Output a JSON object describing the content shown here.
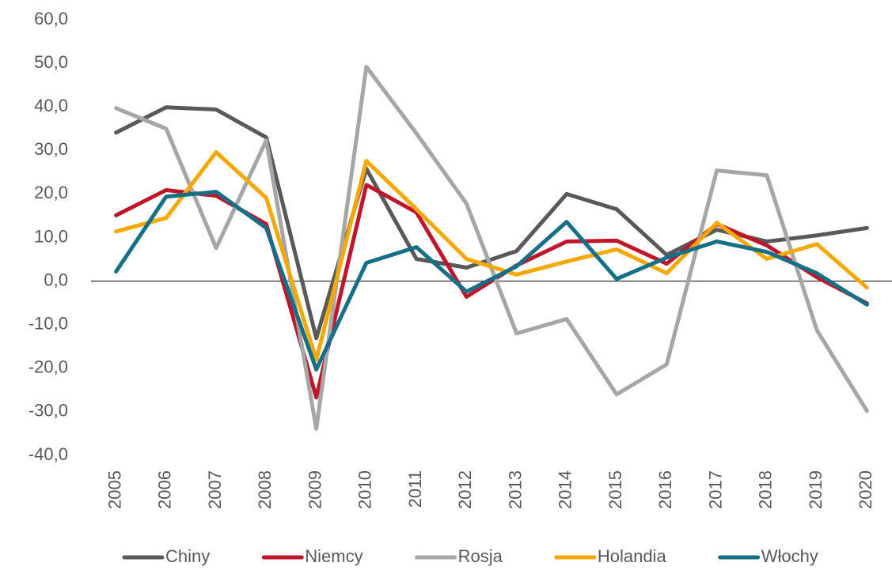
{
  "chart_data": {
    "type": "line",
    "categories": [
      "2005",
      "2006",
      "2007",
      "2008",
      "2009",
      "2010",
      "2011",
      "2012",
      "2013",
      "2014",
      "2015",
      "2016",
      "2017",
      "2018",
      "2019",
      "2020"
    ],
    "series": [
      {
        "name": "Chiny",
        "color": "#595959",
        "values": [
          34.1,
          39.9,
          39.4,
          33.0,
          -13.1,
          25.8,
          5.1,
          3.1,
          6.9,
          20.0,
          16.5,
          6.0,
          11.8,
          9.1,
          10.5,
          12.2
        ]
      },
      {
        "name": "Niemcy",
        "color": "#c0162c",
        "values": [
          15.1,
          20.9,
          19.6,
          13.1,
          -26.7,
          22.1,
          15.8,
          -3.6,
          3.6,
          9.1,
          9.3,
          4.0,
          13.1,
          8.2,
          0.9,
          -5.1
        ]
      },
      {
        "name": "Rosja",
        "color": "#a6a6a6",
        "values": [
          39.7,
          35.0,
          7.6,
          32.3,
          -33.9,
          49.2,
          33.9,
          17.8,
          -12.0,
          -8.7,
          -26.0,
          -19.1,
          25.4,
          24.3,
          -11.3,
          -29.8
        ]
      },
      {
        "name": "Holandia",
        "color": "#f5a800",
        "values": [
          11.4,
          14.5,
          29.6,
          19.1,
          -18.1,
          27.6,
          16.5,
          5.1,
          1.5,
          4.5,
          7.3,
          1.8,
          13.4,
          5.1,
          8.5,
          -1.5
        ]
      },
      {
        "name": "Włochy",
        "color": "#156f87",
        "values": [
          2.2,
          19.4,
          20.5,
          12.2,
          -20.3,
          4.2,
          7.8,
          -2.4,
          3.4,
          13.6,
          0.5,
          5.4,
          9.1,
          6.7,
          1.8,
          -5.4
        ]
      }
    ],
    "ylim": [
      -40,
      60
    ],
    "yticks": [
      {
        "value": -40,
        "label": "-40,0"
      },
      {
        "value": -30,
        "label": "-30,0"
      },
      {
        "value": -20,
        "label": "-20,0"
      },
      {
        "value": -10,
        "label": "-10,0"
      },
      {
        "value": 0,
        "label": "0,0"
      },
      {
        "value": 10,
        "label": "10,0"
      },
      {
        "value": 20,
        "label": "20,0"
      },
      {
        "value": 30,
        "label": "30,0"
      },
      {
        "value": 40,
        "label": "40,0"
      },
      {
        "value": 50,
        "label": "50,0"
      },
      {
        "value": 60,
        "label": "60,0"
      }
    ],
    "grid": false,
    "legend": "bottom"
  }
}
